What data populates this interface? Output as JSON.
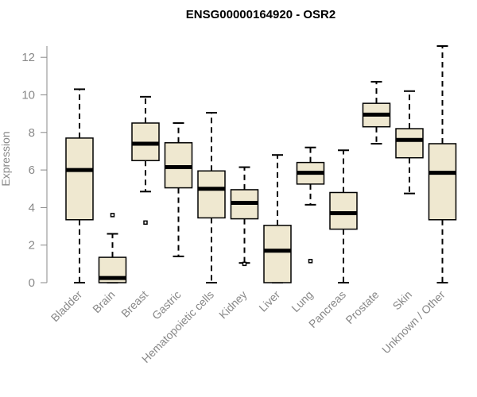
{
  "chart_data": {
    "type": "box",
    "title": "ENSG00000164920 - OSR2",
    "ylabel": "Expression",
    "xlabel": "",
    "ylim": [
      0,
      12.6
    ],
    "yticks": [
      0,
      2,
      4,
      6,
      8,
      10,
      12
    ],
    "grid": false,
    "colors": {
      "box_fill": "#efe8d0",
      "box_stroke": "#000000",
      "median": "#000000",
      "axis": "#888888",
      "text": "#888888"
    },
    "categories": [
      "Bladder",
      "Brain",
      "Breast",
      "Gastric",
      "Hematopoietic cells",
      "Kidney",
      "Liver",
      "Lung",
      "Pancreas",
      "Prostate",
      "Skin",
      "Unknown / Other"
    ],
    "boxes": [
      {
        "category": "Bladder",
        "whisker_low": 0.0,
        "q1": 3.35,
        "median": 6.0,
        "q3": 7.7,
        "whisker_high": 10.3,
        "outliers": []
      },
      {
        "category": "Brain",
        "whisker_low": 0.0,
        "q1": 0.0,
        "median": 0.25,
        "q3": 1.35,
        "whisker_high": 2.6,
        "outliers": [
          3.6
        ]
      },
      {
        "category": "Breast",
        "whisker_low": 4.85,
        "q1": 6.5,
        "median": 7.4,
        "q3": 8.5,
        "whisker_high": 9.9,
        "outliers": [
          3.2
        ]
      },
      {
        "category": "Gastric",
        "whisker_low": 1.4,
        "q1": 5.05,
        "median": 6.15,
        "q3": 7.45,
        "whisker_high": 8.5,
        "outliers": []
      },
      {
        "category": "Hematopoietic cells",
        "whisker_low": 0.0,
        "q1": 3.45,
        "median": 5.0,
        "q3": 5.95,
        "whisker_high": 9.05,
        "outliers": []
      },
      {
        "category": "Kidney",
        "whisker_low": 1.05,
        "q1": 3.4,
        "median": 4.25,
        "q3": 4.95,
        "whisker_high": 6.15,
        "outliers": [
          1.0
        ]
      },
      {
        "category": "Liver",
        "whisker_low": 0.0,
        "q1": 0.0,
        "median": 1.7,
        "q3": 3.05,
        "whisker_high": 6.8,
        "outliers": []
      },
      {
        "category": "Lung",
        "whisker_low": 4.15,
        "q1": 5.25,
        "median": 5.85,
        "q3": 6.4,
        "whisker_high": 7.2,
        "outliers": [
          1.15
        ]
      },
      {
        "category": "Pancreas",
        "whisker_low": 0.0,
        "q1": 2.85,
        "median": 3.7,
        "q3": 4.8,
        "whisker_high": 7.05,
        "outliers": []
      },
      {
        "category": "Prostate",
        "whisker_low": 7.4,
        "q1": 8.3,
        "median": 8.95,
        "q3": 9.55,
        "whisker_high": 10.7,
        "outliers": []
      },
      {
        "category": "Skin",
        "whisker_low": 4.75,
        "q1": 6.65,
        "median": 7.6,
        "q3": 8.2,
        "whisker_high": 10.2,
        "outliers": []
      },
      {
        "category": "Unknown / Other",
        "whisker_low": 0.0,
        "q1": 3.35,
        "median": 5.85,
        "q3": 7.4,
        "whisker_high": 12.6,
        "outliers": []
      }
    ]
  }
}
